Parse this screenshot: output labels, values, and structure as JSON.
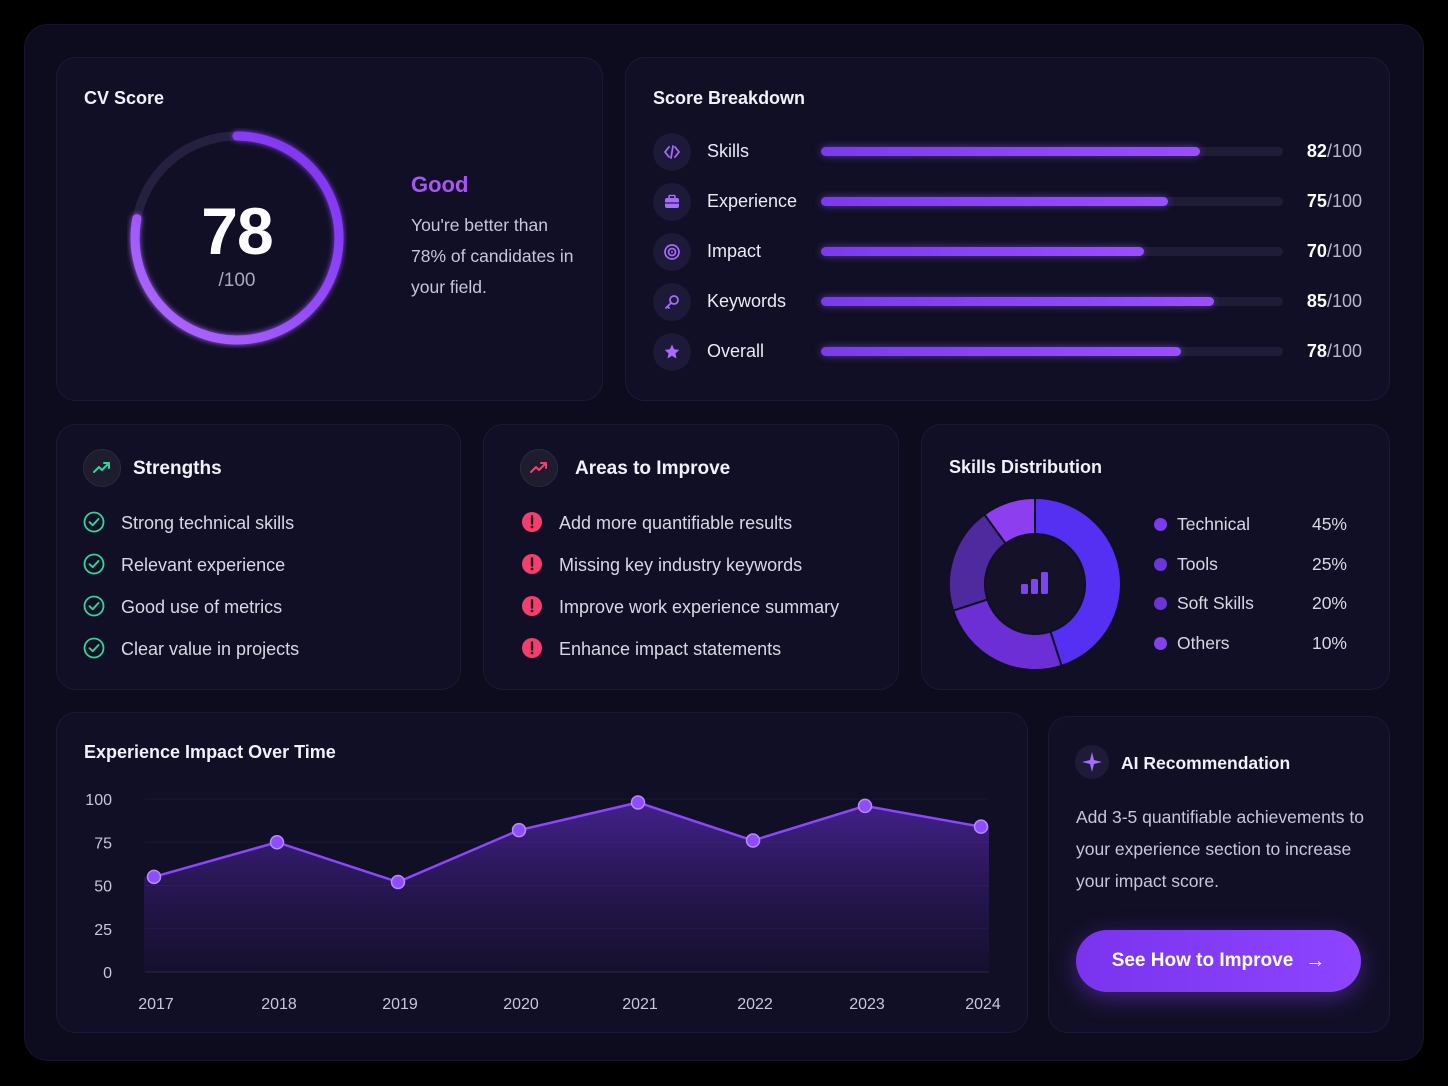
{
  "cv_score": {
    "title": "CV Score",
    "value": "78",
    "suffix": "/100",
    "fraction": 0.78,
    "rating": "Good",
    "description": "You're better than 78% of candidates in your field."
  },
  "breakdown": {
    "title": "Score Breakdown",
    "items": [
      {
        "label": "Skills",
        "score": "82",
        "max": "/100",
        "value": 82,
        "icon": "code-icon"
      },
      {
        "label": "Experience",
        "score": "75",
        "max": "/100",
        "value": 75,
        "icon": "briefcase-icon"
      },
      {
        "label": "Impact",
        "score": "70",
        "max": "/100",
        "value": 70,
        "icon": "target-icon"
      },
      {
        "label": "Keywords",
        "score": "85",
        "max": "/100",
        "value": 85,
        "icon": "key-icon"
      },
      {
        "label": "Overall",
        "score": "78",
        "max": "/100",
        "value": 78,
        "icon": "star-icon"
      }
    ]
  },
  "strengths": {
    "title": "Strengths",
    "items": [
      "Strong technical skills",
      "Relevant experience",
      "Good use of metrics",
      "Clear value in projects"
    ]
  },
  "improve": {
    "title": "Areas to Improve",
    "items": [
      "Add more quantifiable results",
      "Missing key industry keywords",
      "Improve work experience summary",
      "Enhance impact statements"
    ]
  },
  "skills": {
    "title": "Skills Distribution",
    "items": [
      {
        "label": "Technical",
        "value": "45%",
        "pct": 45,
        "color": "#5b32f0"
      },
      {
        "label": "Tools",
        "value": "25%",
        "pct": 25,
        "color": "#6a2fd9"
      },
      {
        "label": "Soft Skills",
        "value": "20%",
        "pct": 20,
        "color": "#5a2ab5"
      },
      {
        "label": "Others",
        "value": "10%",
        "pct": 10,
        "color": "#8a3ff0"
      }
    ]
  },
  "chart_data": {
    "type": "area",
    "title": "Experience Impact Over Time",
    "x": [
      "2017",
      "2018",
      "2019",
      "2020",
      "2021",
      "2022",
      "2023",
      "2024"
    ],
    "series": [
      {
        "values": [
          55,
          75,
          52,
          82,
          98,
          76,
          96,
          84
        ]
      }
    ],
    "ylim": [
      0,
      100
    ],
    "yticks": [
      "0",
      "25",
      "50",
      "75",
      "100"
    ],
    "grid": true,
    "color": "#8b47ff"
  },
  "ai": {
    "title": "AI Recommendation",
    "text": "Add 3-5 quantifiable achievements to your experience section to increase your impact score.",
    "button_label": "See How to Improve",
    "button_arrow": "→"
  },
  "colors": {
    "accent": "#8b47ff",
    "success": "#34d399",
    "warning": "#f43f6e"
  }
}
